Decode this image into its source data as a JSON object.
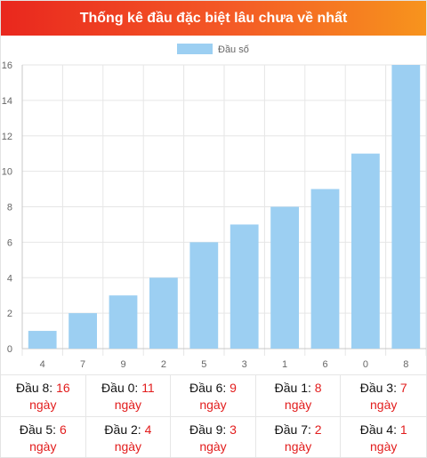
{
  "header": {
    "title": "Thống kê đầu đặc biệt lâu chưa về nhất"
  },
  "colors": {
    "bar": "#9ccff2",
    "text_red": "#e21d1d"
  },
  "chart_data": {
    "type": "bar",
    "categories": [
      "4",
      "7",
      "9",
      "2",
      "5",
      "3",
      "1",
      "6",
      "0",
      "8"
    ],
    "series": [
      {
        "name": "Đầu số",
        "values": [
          1,
          2,
          3,
          4,
          6,
          7,
          8,
          9,
          11,
          16
        ]
      }
    ],
    "ylim": [
      0,
      16
    ],
    "yticks": [
      0,
      2,
      4,
      6,
      8,
      10,
      12,
      14,
      16
    ],
    "legend": "top-center",
    "grid": true
  },
  "stats": [
    {
      "label": "Đầu 8:",
      "value": "16",
      "unit": "ngày"
    },
    {
      "label": "Đầu 0:",
      "value": "11",
      "unit": "ngày"
    },
    {
      "label": "Đầu 6:",
      "value": "9",
      "unit": "ngày"
    },
    {
      "label": "Đầu 1:",
      "value": "8",
      "unit": "ngày"
    },
    {
      "label": "Đầu 3:",
      "value": "7",
      "unit": "ngày"
    },
    {
      "label": "Đầu 5:",
      "value": "6",
      "unit": "ngày"
    },
    {
      "label": "Đầu 2:",
      "value": "4",
      "unit": "ngày"
    },
    {
      "label": "Đầu 9:",
      "value": "3",
      "unit": "ngày"
    },
    {
      "label": "Đầu 7:",
      "value": "2",
      "unit": "ngày"
    },
    {
      "label": "Đầu 4:",
      "value": "1",
      "unit": "ngày"
    }
  ]
}
